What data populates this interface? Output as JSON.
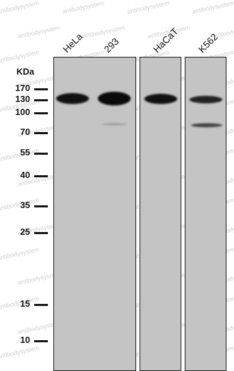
{
  "blot": {
    "watermark_text": "antibodysystem",
    "unit_label": "KDa",
    "lanes": [
      "HeLa",
      "293",
      "HaCaT",
      "K562"
    ],
    "markers": [
      "170",
      "130",
      "100",
      "70",
      "55",
      "40",
      "35",
      "25",
      "15",
      "10"
    ],
    "colors": {
      "membrane": "#c4c4c4",
      "band": "#111111",
      "ink": "#111111"
    }
  }
}
